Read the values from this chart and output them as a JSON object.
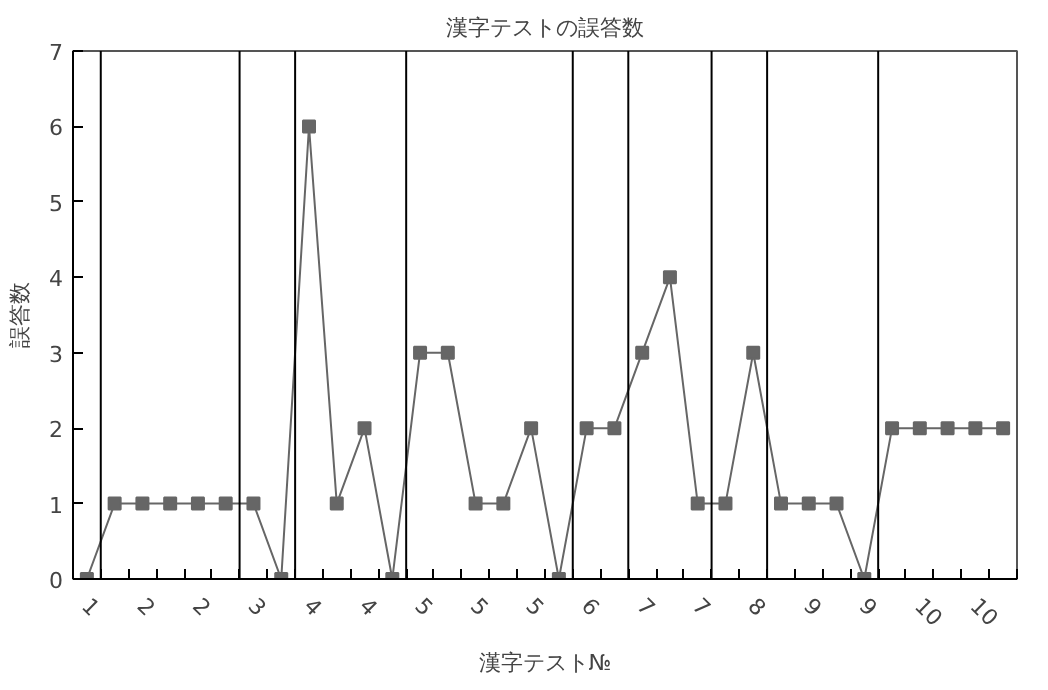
{
  "chart_data": {
    "type": "line",
    "title": "漢字テストの誤答数",
    "xlabel": "漢字テスト№",
    "ylabel": "誤答数",
    "categories": [
      "1",
      null,
      "2",
      null,
      "2",
      null,
      "3",
      null,
      "4",
      null,
      "4",
      null,
      "5",
      null,
      "5",
      null,
      "5",
      null,
      "6",
      null,
      "7",
      null,
      "7",
      null,
      "8",
      null,
      "9",
      null,
      "9",
      null,
      "10",
      null,
      "10",
      null
    ],
    "series": [
      {
        "color": "#666666",
        "values": [
          0,
          1,
          1,
          1,
          1,
          1,
          1,
          0,
          6,
          1,
          2,
          0,
          3,
          3,
          1,
          1,
          2,
          0,
          2,
          2,
          3,
          4,
          1,
          1,
          3,
          1,
          1,
          1,
          0,
          2,
          2,
          2,
          2,
          2
        ]
      }
    ],
    "ylim": [
      0,
      7
    ],
    "yticks": [
      0,
      1,
      2,
      3,
      4,
      5,
      6,
      7
    ],
    "grid": false,
    "marker": "square",
    "line_style": "solid"
  }
}
